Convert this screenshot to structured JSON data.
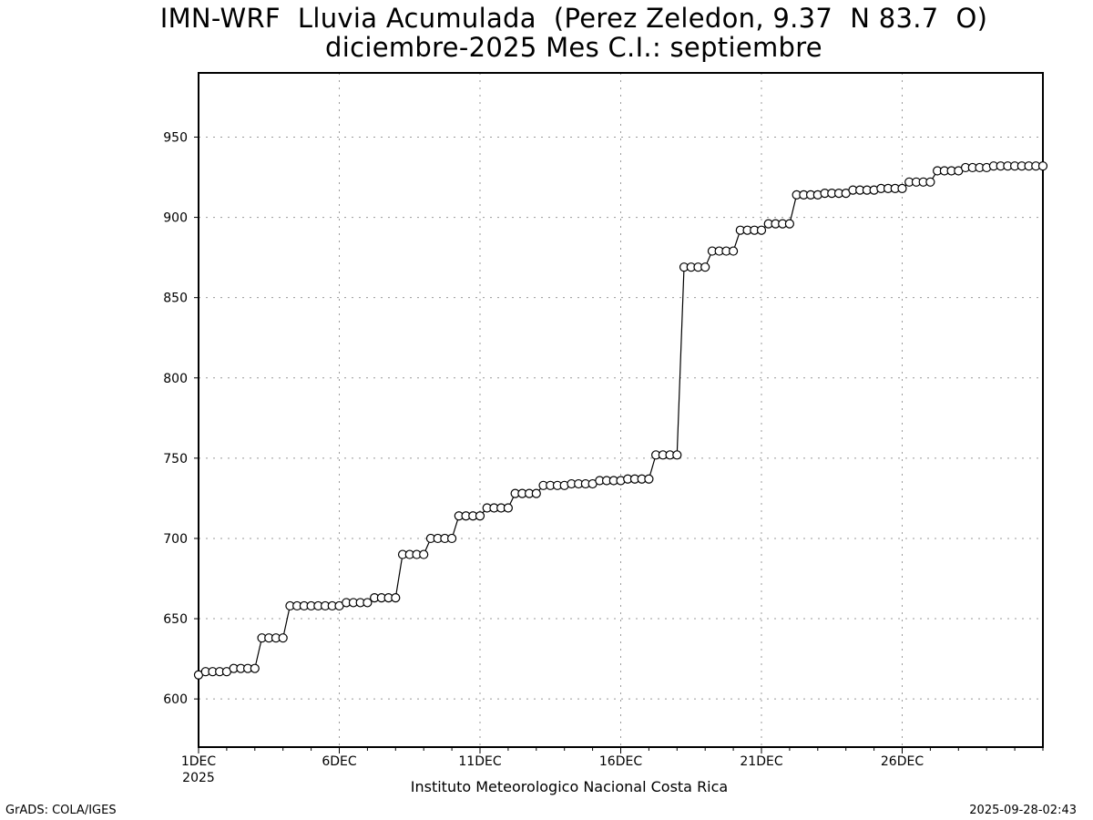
{
  "chart_data": {
    "type": "line",
    "title": "IMN-WRF  Lluvia Acumulada  (Perez Zeledon, 9.37  N 83.7  O)",
    "subtitle": "diciembre-2025 Mes C.I.: septiembre",
    "xlabel": "",
    "ylabel": "",
    "ylim": [
      570,
      990
    ],
    "xlim": [
      1,
      31
    ],
    "x_unit": "day of December 2025",
    "x_step": 0.25,
    "x_tick_labels": [
      "1DEC",
      "6DEC",
      "11DEC",
      "16DEC",
      "21DEC",
      "26DEC"
    ],
    "x_tick_values": [
      1,
      6,
      11,
      16,
      21,
      26
    ],
    "x_year_label": "2025",
    "y_ticks": [
      600,
      650,
      700,
      750,
      800,
      850,
      900,
      950
    ],
    "grid": true,
    "series": [
      {
        "marker": "open-circle",
        "x": [
          1.0,
          1.25,
          1.5,
          1.75,
          2.0,
          2.25,
          2.5,
          2.75,
          3.0,
          3.25,
          3.5,
          3.75,
          4.0,
          4.25,
          4.5,
          4.75,
          5.0,
          5.25,
          5.5,
          5.75,
          6.0,
          6.25,
          6.5,
          6.75,
          7.0,
          7.25,
          7.5,
          7.75,
          8.0,
          8.25,
          8.5,
          8.75,
          9.0,
          9.25,
          9.5,
          9.75,
          10.0,
          10.25,
          10.5,
          10.75,
          11.0,
          11.25,
          11.5,
          11.75,
          12.0,
          12.25,
          12.5,
          12.75,
          13.0,
          13.25,
          13.5,
          13.75,
          14.0,
          14.25,
          14.5,
          14.75,
          15.0,
          15.25,
          15.5,
          15.75,
          16.0,
          16.25,
          16.5,
          16.75,
          17.0,
          17.25,
          17.5,
          17.75,
          18.0,
          18.25,
          18.5,
          18.75,
          19.0,
          19.25,
          19.5,
          19.75,
          20.0,
          20.25,
          20.5,
          20.75,
          21.0,
          21.25,
          21.5,
          21.75,
          22.0,
          22.25,
          22.5,
          22.75,
          23.0,
          23.25,
          23.5,
          23.75,
          24.0,
          24.25,
          24.5,
          24.75,
          25.0,
          25.25,
          25.5,
          25.75,
          26.0,
          26.25,
          26.5,
          26.75,
          27.0,
          27.25,
          27.5,
          27.75,
          28.0,
          28.25,
          28.5,
          28.75,
          29.0,
          29.25,
          29.5,
          29.75,
          30.0,
          30.25,
          30.5,
          30.75,
          31.0
        ],
        "values": [
          615,
          617,
          617,
          617,
          617,
          619,
          619,
          619,
          619,
          638,
          638,
          638,
          638,
          658,
          658,
          658,
          658,
          658,
          658,
          658,
          658,
          660,
          660,
          660,
          660,
          663,
          663,
          663,
          663,
          690,
          690,
          690,
          690,
          700,
          700,
          700,
          700,
          714,
          714,
          714,
          714,
          719,
          719,
          719,
          719,
          728,
          728,
          728,
          728,
          733,
          733,
          733,
          733,
          734,
          734,
          734,
          734,
          736,
          736,
          736,
          736,
          737,
          737,
          737,
          737,
          752,
          752,
          752,
          752,
          869,
          869,
          869,
          869,
          879,
          879,
          879,
          879,
          892,
          892,
          892,
          892,
          896,
          896,
          896,
          896,
          914,
          914,
          914,
          914,
          915,
          915,
          915,
          915,
          917,
          917,
          917,
          917,
          918,
          918,
          918,
          918,
          922,
          922,
          922,
          922,
          929,
          929,
          929,
          929,
          931,
          931,
          931,
          931,
          932,
          932,
          932,
          932,
          932,
          932,
          932,
          932
        ]
      }
    ]
  },
  "footer": {
    "credit": "Instituto Meteorologico Nacional Costa Rica",
    "left": "GrADS: COLA/IGES",
    "right": "2025-09-28-02:43"
  }
}
